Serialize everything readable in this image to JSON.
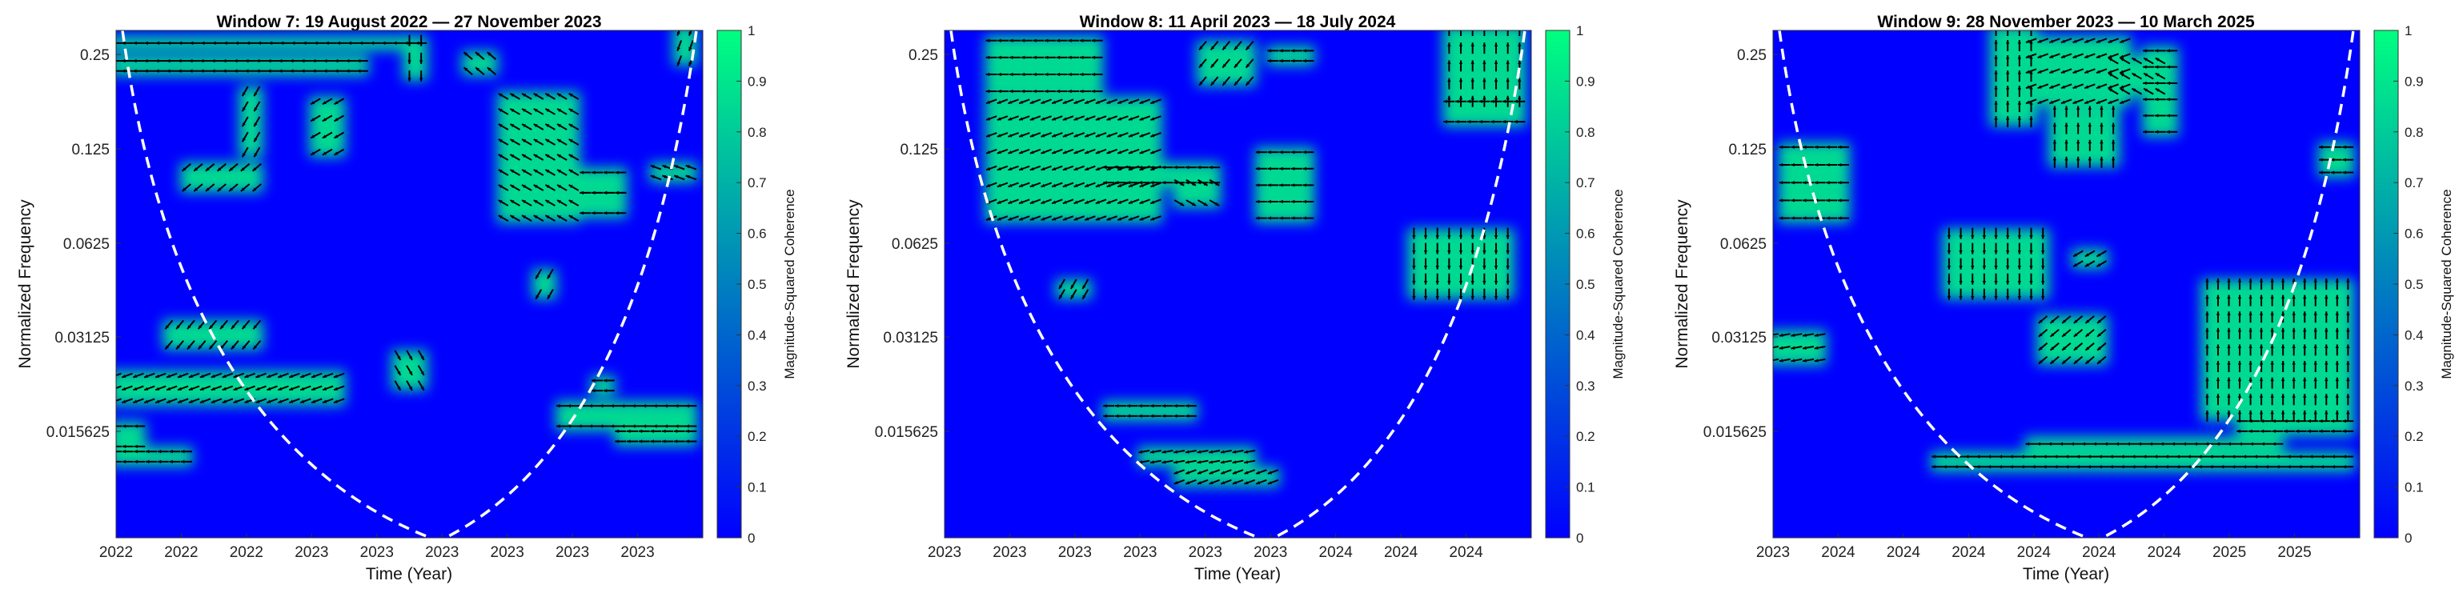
{
  "colorbar": {
    "label": "Magnitude-Squared Coherence",
    "ticks": [
      "0",
      "0.1",
      "0.2",
      "0.3",
      "0.4",
      "0.5",
      "0.6",
      "0.7",
      "0.8",
      "0.9",
      "1"
    ],
    "color_low": "#0000ff",
    "color_high": "#00ff80"
  },
  "cone_color": "#ffffff",
  "arrow_color": "#000000",
  "chart_data": [
    {
      "type": "heatmap",
      "title": "Window 7: 19 August 2022 — 27 November 2023",
      "xlabel": "Time (Year)",
      "ylabel": "Normalized Frequency",
      "x_ticks": [
        "2022",
        "2022",
        "2022",
        "2023",
        "2023",
        "2023",
        "2023",
        "2023",
        "2023"
      ],
      "y_ticks": [
        "0.25",
        "0.125",
        "0.0625",
        "0.03125",
        "0.015625"
      ],
      "zlim": [
        0,
        1
      ],
      "arrow_regions": [
        {
          "t0": 0.0,
          "t1": 0.04,
          "f0": 0.78,
          "f1": 0.82,
          "angle": 180
        },
        {
          "t0": 0.0,
          "t1": 0.12,
          "f0": 0.83,
          "f1": 0.85,
          "angle": 180
        },
        {
          "t0": 0.0,
          "t1": 0.38,
          "f0": 0.68,
          "f1": 0.73,
          "angle": 200
        },
        {
          "t0": 0.09,
          "t1": 0.24,
          "f0": 0.58,
          "f1": 0.62,
          "angle": 230
        },
        {
          "t0": 0.0,
          "t1": 0.42,
          "f0": 0.06,
          "f1": 0.08,
          "angle": 180
        },
        {
          "t0": 0.0,
          "t1": 0.52,
          "f0": 0.02,
          "f1": 0.03,
          "angle": 180
        },
        {
          "t0": 0.12,
          "t1": 0.24,
          "f0": 0.27,
          "f1": 0.31,
          "angle": 220
        },
        {
          "t0": 0.22,
          "t1": 0.24,
          "f0": 0.12,
          "f1": 0.24,
          "angle": 240
        },
        {
          "t0": 0.34,
          "t1": 0.38,
          "f0": 0.14,
          "f1": 0.24,
          "angle": 210
        },
        {
          "t0": 0.48,
          "t1": 0.52,
          "f0": 0.64,
          "f1": 0.7,
          "angle": 300
        },
        {
          "t0": 0.5,
          "t1": 0.52,
          "f0": 0.02,
          "f1": 0.09,
          "angle": 270
        },
        {
          "t0": 0.6,
          "t1": 0.64,
          "f0": 0.05,
          "f1": 0.08,
          "angle": 140
        },
        {
          "t0": 0.66,
          "t1": 0.78,
          "f0": 0.13,
          "f1": 0.37,
          "angle": 150
        },
        {
          "t0": 0.8,
          "t1": 0.86,
          "f0": 0.28,
          "f1": 0.32,
          "angle": 180
        },
        {
          "t0": 0.8,
          "t1": 0.86,
          "f0": 0.32,
          "f1": 0.36,
          "angle": 180
        },
        {
          "t0": 0.72,
          "t1": 0.74,
          "f0": 0.48,
          "f1": 0.52,
          "angle": 240
        },
        {
          "t0": 0.76,
          "t1": 0.98,
          "f0": 0.74,
          "f1": 0.78,
          "angle": 180
        },
        {
          "t0": 0.82,
          "t1": 0.84,
          "f0": 0.69,
          "f1": 0.71,
          "angle": 180
        },
        {
          "t0": 0.86,
          "t1": 0.98,
          "f0": 0.79,
          "f1": 0.81,
          "angle": 180
        },
        {
          "t0": 0.92,
          "t1": 0.98,
          "f0": 0.27,
          "f1": 0.29,
          "angle": 160
        },
        {
          "t0": 0.96,
          "t1": 0.98,
          "f0": 0.0,
          "f1": 0.06,
          "angle": 250
        }
      ]
    },
    {
      "type": "heatmap",
      "title": "Window 8: 11 April 2023 — 18 July 2024",
      "xlabel": "Time (Year)",
      "ylabel": "Normalized Frequency",
      "x_ticks": [
        "2023",
        "2023",
        "2023",
        "2023",
        "2023",
        "2023",
        "2024",
        "2024",
        "2024"
      ],
      "y_ticks": [
        "0.25",
        "0.125",
        "0.0625",
        "0.03125",
        "0.015625"
      ],
      "zlim": [
        0,
        1
      ],
      "arrow_regions": [
        {
          "t0": 0.08,
          "t1": 0.36,
          "f0": 0.14,
          "f1": 0.37,
          "angle": 200
        },
        {
          "t0": 0.28,
          "t1": 0.46,
          "f0": 0.27,
          "f1": 0.3,
          "angle": 180
        },
        {
          "t0": 0.4,
          "t1": 0.46,
          "f0": 0.3,
          "f1": 0.34,
          "angle": 330
        },
        {
          "t0": 0.54,
          "t1": 0.62,
          "f0": 0.24,
          "f1": 0.37,
          "angle": 180
        },
        {
          "t0": 0.2,
          "t1": 0.24,
          "f0": 0.5,
          "f1": 0.52,
          "angle": 240
        },
        {
          "t0": 0.28,
          "t1": 0.42,
          "f0": 0.74,
          "f1": 0.76,
          "angle": 180
        },
        {
          "t0": 0.34,
          "t1": 0.52,
          "f0": 0.83,
          "f1": 0.85,
          "angle": 190
        },
        {
          "t0": 0.4,
          "t1": 0.56,
          "f0": 0.87,
          "f1": 0.89,
          "angle": 200
        },
        {
          "t0": 0.08,
          "t1": 0.26,
          "f0": 0.02,
          "f1": 0.12,
          "angle": 180
        },
        {
          "t0": 0.44,
          "t1": 0.52,
          "f0": 0.03,
          "f1": 0.1,
          "angle": 230
        },
        {
          "t0": 0.56,
          "t1": 0.62,
          "f0": 0.04,
          "f1": 0.06,
          "angle": 180
        },
        {
          "t0": 0.8,
          "t1": 0.96,
          "f0": 0.4,
          "f1": 0.52,
          "angle": 270
        },
        {
          "t0": 0.86,
          "t1": 0.98,
          "f0": 0.0,
          "f1": 0.14,
          "angle": 90
        },
        {
          "t0": 0.86,
          "t1": 0.98,
          "f0": 0.14,
          "f1": 0.18,
          "angle": 180
        }
      ]
    },
    {
      "type": "heatmap",
      "title": "Window 9: 28 November 2023 — 10 March 2025",
      "xlabel": "Time (Year)",
      "ylabel": "Normalized Frequency",
      "x_ticks": [
        "2023",
        "2024",
        "2024",
        "2024",
        "2024",
        "2024",
        "2024",
        "2025",
        "2025"
      ],
      "y_ticks": [
        "0.25",
        "0.125",
        "0.0625",
        "0.03125",
        "0.015625"
      ],
      "zlim": [
        0,
        1
      ],
      "arrow_regions": [
        {
          "t0": 0.02,
          "t1": 0.12,
          "f0": 0.23,
          "f1": 0.37,
          "angle": 180
        },
        {
          "t0": 0.0,
          "t1": 0.08,
          "f0": 0.6,
          "f1": 0.65,
          "angle": 190
        },
        {
          "t0": 0.3,
          "t1": 0.46,
          "f0": 0.4,
          "f1": 0.52,
          "angle": 270
        },
        {
          "t0": 0.52,
          "t1": 0.56,
          "f0": 0.44,
          "f1": 0.46,
          "angle": 210
        },
        {
          "t0": 0.46,
          "t1": 0.56,
          "f0": 0.57,
          "f1": 0.65,
          "angle": 220
        },
        {
          "t0": 0.38,
          "t1": 0.44,
          "f0": 0.0,
          "f1": 0.18,
          "angle": 90
        },
        {
          "t0": 0.44,
          "t1": 0.6,
          "f0": 0.02,
          "f1": 0.14,
          "angle": 200
        },
        {
          "t0": 0.48,
          "t1": 0.58,
          "f0": 0.16,
          "f1": 0.26,
          "angle": 90
        },
        {
          "t0": 0.64,
          "t1": 0.68,
          "f0": 0.04,
          "f1": 0.2,
          "angle": 180
        },
        {
          "t0": 0.58,
          "t1": 0.66,
          "f0": 0.06,
          "f1": 0.12,
          "angle": 150
        },
        {
          "t0": 0.74,
          "t1": 0.98,
          "f0": 0.5,
          "f1": 0.76,
          "angle": 90
        },
        {
          "t0": 0.8,
          "t1": 0.98,
          "f0": 0.77,
          "f1": 0.79,
          "angle": 180
        },
        {
          "t0": 0.28,
          "t1": 0.98,
          "f0": 0.84,
          "f1": 0.86,
          "angle": 180
        },
        {
          "t0": 0.44,
          "t1": 0.86,
          "f0": 0.81,
          "f1": 0.82,
          "angle": 180
        },
        {
          "t0": 0.94,
          "t1": 0.98,
          "f0": 0.23,
          "f1": 0.28,
          "angle": 180
        }
      ]
    }
  ]
}
